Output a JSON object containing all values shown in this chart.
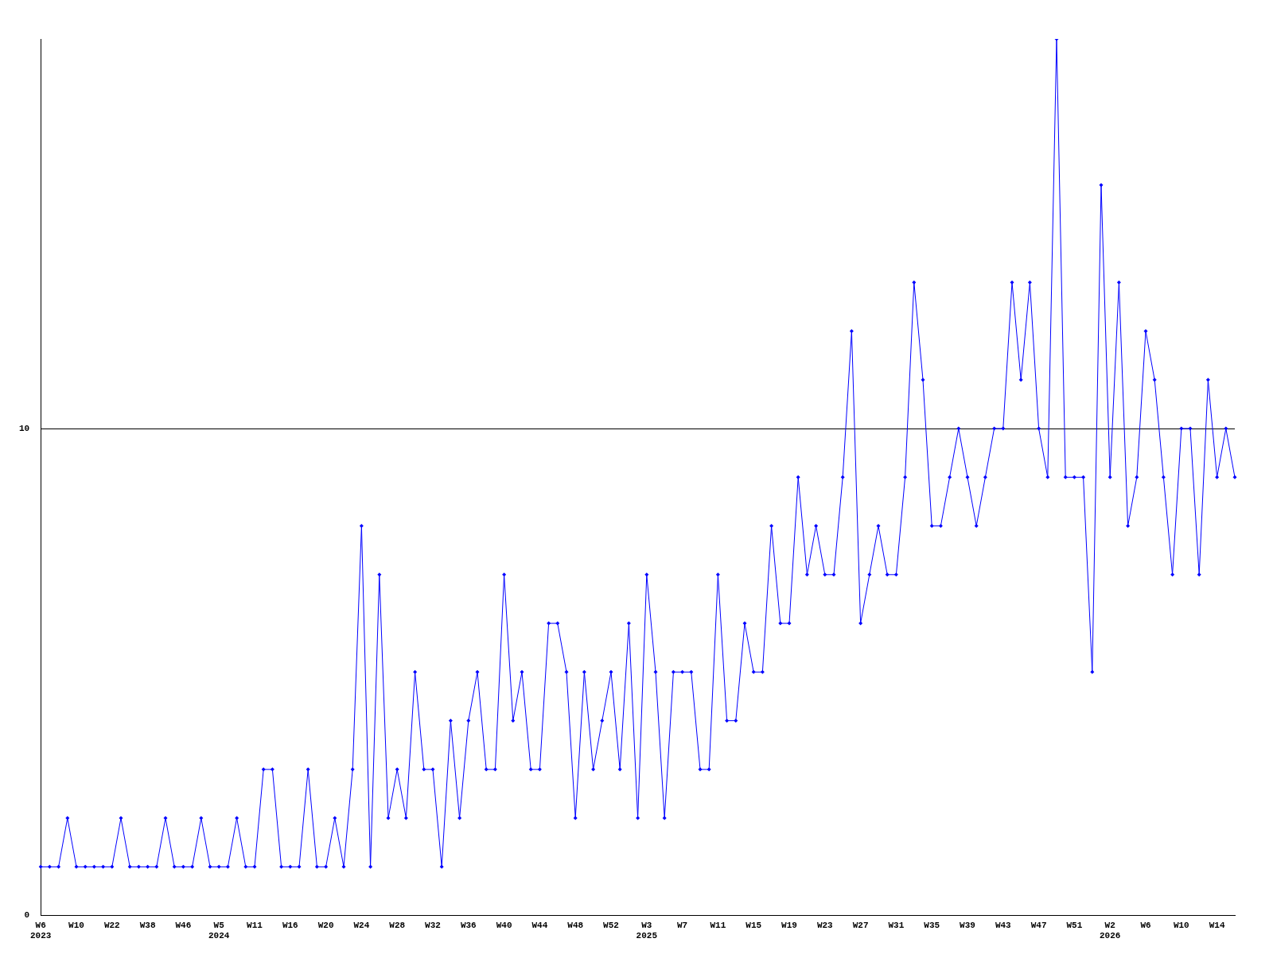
{
  "chart_data": {
    "type": "line",
    "categories": [
      "W6\n2023",
      null,
      null,
      null,
      "W10",
      null,
      null,
      null,
      "W22",
      null,
      null,
      null,
      "W38",
      null,
      null,
      null,
      "W46",
      null,
      null,
      null,
      "W5\n2024",
      null,
      null,
      null,
      "W11",
      null,
      null,
      null,
      "W16",
      null,
      null,
      null,
      "W20",
      null,
      null,
      null,
      "W24",
      null,
      null,
      null,
      "W28",
      null,
      null,
      null,
      "W32",
      null,
      null,
      null,
      "W36",
      null,
      null,
      null,
      "W40",
      null,
      null,
      null,
      "W44",
      null,
      null,
      null,
      "W48",
      null,
      null,
      null,
      "W52",
      null,
      null,
      null,
      "W3\n2025",
      null,
      null,
      null,
      "W7",
      null,
      null,
      null,
      "W11",
      null,
      null,
      null,
      "W15",
      null,
      null,
      null,
      "W19",
      null,
      null,
      null,
      "W23",
      null,
      null,
      null,
      "W27",
      null,
      null,
      null,
      "W31",
      null,
      null,
      null,
      "W35",
      null,
      null,
      null,
      "W39",
      null,
      null,
      null,
      "W43",
      null,
      null,
      null,
      "W47",
      null,
      null,
      null,
      "W51",
      null,
      null,
      null,
      "W2\n2026",
      null,
      null,
      null,
      "W6",
      null,
      null,
      null,
      "W10",
      null,
      null,
      null,
      "W14",
      null,
      null
    ],
    "series": [
      {
        "color": "#0000ff",
        "values": [
          1,
          1,
          1,
          2,
          1,
          1,
          1,
          1,
          1,
          2,
          1,
          1,
          1,
          1,
          2,
          1,
          1,
          1,
          2,
          1,
          1,
          1,
          2,
          1,
          1,
          3,
          3,
          1,
          1,
          1,
          3,
          1,
          1,
          2,
          1,
          3,
          8,
          1,
          7,
          2,
          3,
          2,
          5,
          3,
          3,
          1,
          4,
          2,
          4,
          5,
          3,
          3,
          7,
          4,
          5,
          3,
          3,
          6,
          6,
          5,
          2,
          5,
          3,
          4,
          5,
          3,
          6,
          2,
          7,
          5,
          2,
          5,
          5,
          5,
          3,
          3,
          7,
          4,
          4,
          6,
          5,
          5,
          8,
          6,
          6,
          9,
          7,
          8,
          7,
          7,
          9,
          12,
          6,
          7,
          8,
          7,
          7,
          9,
          13,
          11,
          8,
          8,
          9,
          10,
          9,
          8,
          9,
          10,
          10,
          13,
          11,
          13,
          10,
          9,
          18,
          9,
          9,
          9,
          5,
          15,
          9,
          13,
          8,
          9,
          12,
          11,
          9,
          7,
          10,
          10,
          7,
          11,
          9,
          10,
          9
        ]
      }
    ],
    "ylim": [
      0,
      18
    ],
    "yticks": [
      0,
      10
    ],
    "grid": "y",
    "marker": "diamond",
    "line_style": "solid"
  }
}
